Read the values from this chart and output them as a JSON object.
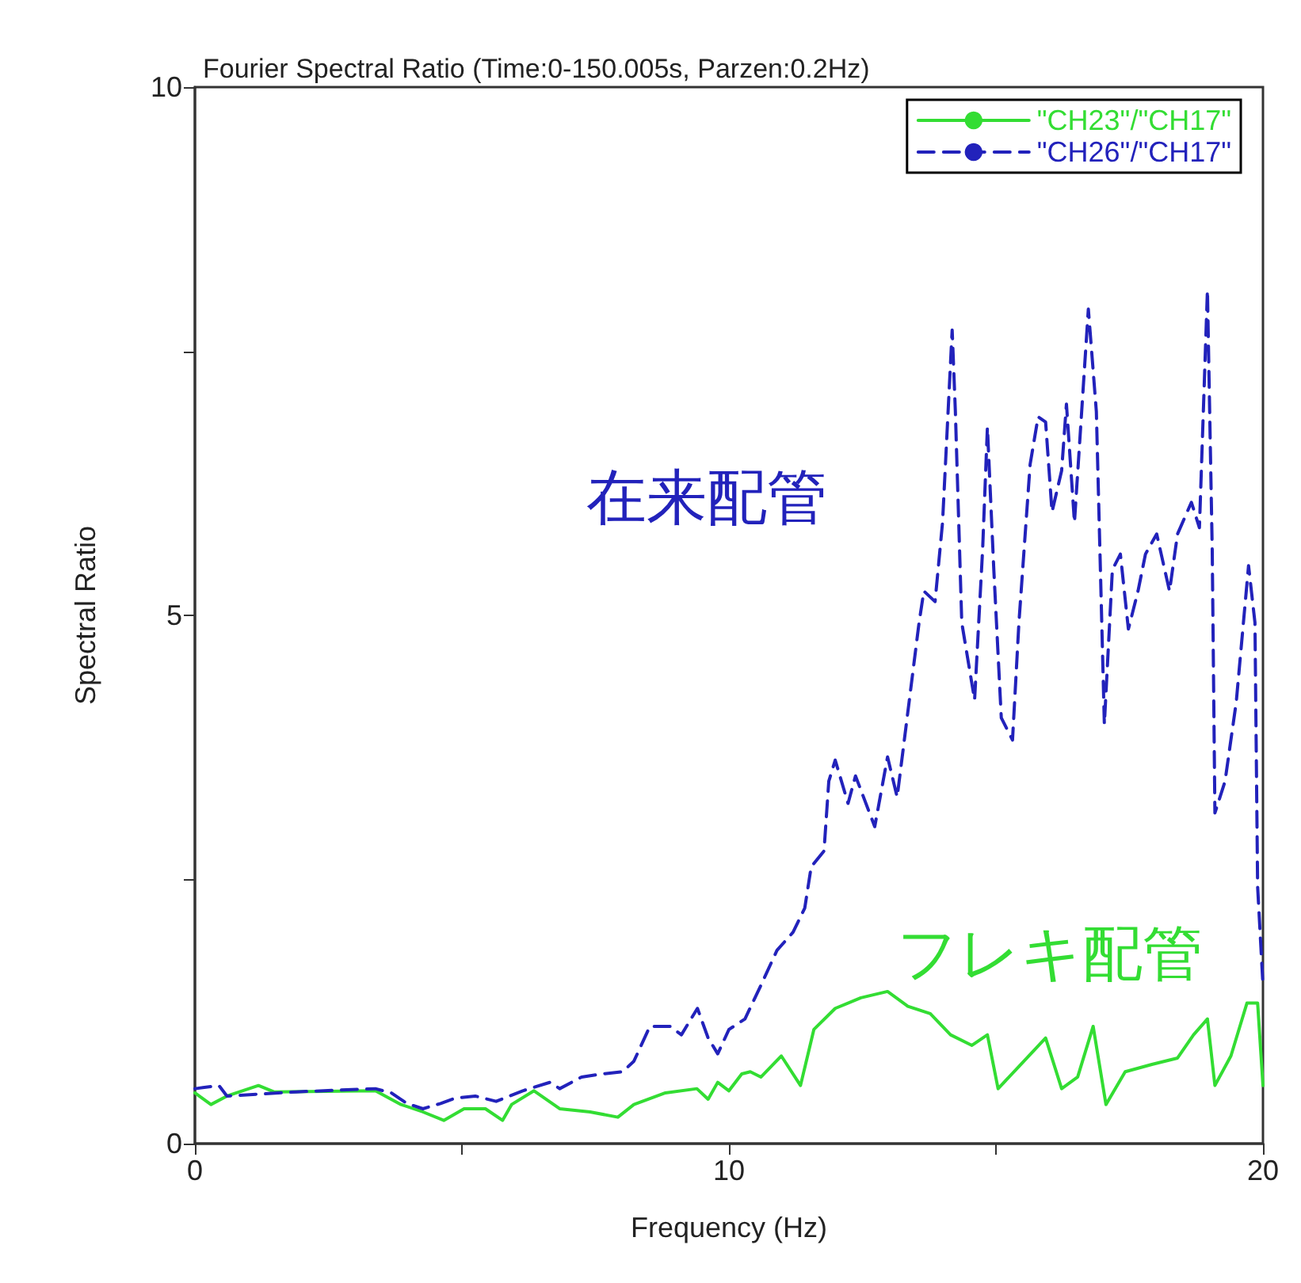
{
  "chart_data": {
    "type": "line",
    "title": "Fourier Spectral Ratio (Time:0-150.005s, Parzen:0.2Hz)",
    "xlabel": "Frequency (Hz)",
    "ylabel": "Spectral Ratio",
    "xlim": [
      0,
      20
    ],
    "ylim": [
      0,
      10
    ],
    "xticks": [
      0,
      {
        "value": 5,
        "label": null
      },
      10,
      {
        "value": 15,
        "label": null
      },
      20
    ],
    "yticks": [
      0,
      {
        "value": 2.5,
        "label": null
      },
      5,
      {
        "value": 7.5,
        "label": null
      },
      10
    ],
    "grid": false,
    "legend": "top right",
    "marker": "none",
    "annotations": [
      "在来配管",
      "フレキ配管"
    ],
    "series": [
      {
        "name": "\"CH23\"/\"CH17\"",
        "color": "#33dd33",
        "line_style": "solid",
        "x": [
          0,
          0.3,
          0.6,
          1.19,
          1.48,
          3.38,
          3.86,
          4.27,
          4.66,
          5.04,
          5.44,
          5.76,
          5.93,
          6.35,
          6.83,
          7.4,
          7.92,
          8.22,
          8.81,
          9.4,
          9.61,
          9.79,
          10.0,
          10.24,
          10.4,
          10.6,
          10.98,
          11.34,
          11.59,
          11.99,
          12.47,
          12.97,
          13.35,
          13.77,
          14.15,
          14.55,
          14.84,
          15.04,
          15.43,
          15.93,
          16.23,
          16.53,
          16.82,
          17.06,
          17.42,
          17.92,
          18.4,
          18.7,
          18.96,
          19.1,
          19.4,
          19.7,
          19.9,
          20
        ],
        "values": [
          0.48,
          0.37,
          0.45,
          0.55,
          0.49,
          0.5,
          0.37,
          0.3,
          0.22,
          0.33,
          0.33,
          0.22,
          0.37,
          0.5,
          0.33,
          0.3,
          0.25,
          0.37,
          0.48,
          0.52,
          0.42,
          0.58,
          0.5,
          0.66,
          0.68,
          0.63,
          0.83,
          0.55,
          1.08,
          1.28,
          1.38,
          1.44,
          1.3,
          1.23,
          1.03,
          0.93,
          1.03,
          0.52,
          0.73,
          1.0,
          0.52,
          0.63,
          1.11,
          0.37,
          0.68,
          0.75,
          0.81,
          1.03,
          1.18,
          0.55,
          0.83,
          1.33,
          1.33,
          0.55
        ]
      },
      {
        "name": "\"CH26\"/\"CH17\"",
        "color": "#2222bb",
        "line_style": "dashed",
        "x": [
          0,
          0.45,
          0.6,
          1.9,
          3.38,
          3.68,
          3.97,
          4.27,
          4.6,
          4.87,
          5.25,
          5.64,
          6.14,
          6.65,
          6.83,
          7.24,
          7.63,
          8.01,
          8.22,
          8.52,
          8.9,
          9.11,
          9.41,
          9.61,
          9.79,
          10.0,
          10.3,
          10.6,
          10.9,
          11.2,
          11.42,
          11.54,
          11.78,
          11.87,
          11.99,
          12.23,
          12.37,
          12.73,
          12.97,
          13.15,
          13.56,
          13.65,
          13.86,
          14.0,
          14.18,
          14.24,
          14.36,
          14.6,
          14.75,
          14.84,
          14.96,
          15.1,
          15.31,
          15.43,
          15.64,
          15.79,
          15.93,
          16.05,
          16.23,
          16.32,
          16.47,
          16.73,
          16.88,
          17.03,
          17.18,
          17.33,
          17.48,
          17.66,
          17.8,
          18.01,
          18.25,
          18.4,
          18.66,
          18.81,
          18.96,
          19.05,
          19.1,
          19.29,
          19.5,
          19.73,
          19.85,
          19.9,
          20
        ],
        "values": [
          0.52,
          0.55,
          0.45,
          0.49,
          0.52,
          0.48,
          0.38,
          0.33,
          0.38,
          0.43,
          0.45,
          0.4,
          0.5,
          0.58,
          0.52,
          0.63,
          0.66,
          0.68,
          0.78,
          1.11,
          1.11,
          1.03,
          1.28,
          1.0,
          0.85,
          1.08,
          1.18,
          1.5,
          1.83,
          2.0,
          2.23,
          2.62,
          2.77,
          3.43,
          3.63,
          3.22,
          3.48,
          3.0,
          3.66,
          3.28,
          4.93,
          5.23,
          5.13,
          5.88,
          7.7,
          6.93,
          4.93,
          4.2,
          5.62,
          6.78,
          5.43,
          4.03,
          3.82,
          4.93,
          6.43,
          6.88,
          6.83,
          5.98,
          6.37,
          7.0,
          5.88,
          7.9,
          6.93,
          3.97,
          5.43,
          5.58,
          4.87,
          5.23,
          5.58,
          5.77,
          5.23,
          5.77,
          6.07,
          5.83,
          8.08,
          5.62,
          3.13,
          3.43,
          4.18,
          5.47,
          4.93,
          2.43,
          1.5
        ]
      }
    ]
  }
}
